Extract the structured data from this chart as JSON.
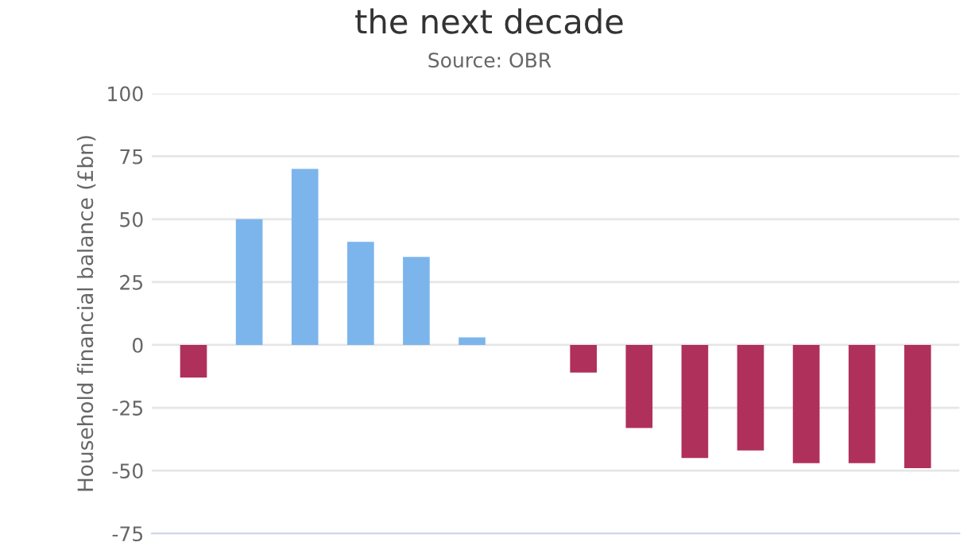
{
  "chart_data": {
    "type": "bar",
    "title": "the next decade",
    "subtitle": "Source: OBR",
    "ylabel": "Household financial balance (£bn)",
    "categories": [
      null,
      null,
      null,
      null,
      null,
      null,
      null,
      null,
      null,
      null,
      null,
      null,
      null,
      null
    ],
    "values": [
      -13,
      50,
      70,
      41,
      35,
      3,
      null,
      -11,
      -33,
      -45,
      -42,
      -47,
      -47,
      -49
    ],
    "colors": [
      "#b0305c",
      "#7cb5ec",
      "#7cb5ec",
      "#7cb5ec",
      "#7cb5ec",
      "#7cb5ec",
      "#7cb5ec",
      "#b0305c",
      "#b0305c",
      "#b0305c",
      "#b0305c",
      "#b0305c",
      "#b0305c",
      "#b0305c"
    ],
    "ylim": [
      -75,
      100
    ],
    "yticks": [
      -75,
      -50,
      -25,
      0,
      25,
      50,
      75,
      100
    ],
    "grid": "y",
    "legend": false
  }
}
